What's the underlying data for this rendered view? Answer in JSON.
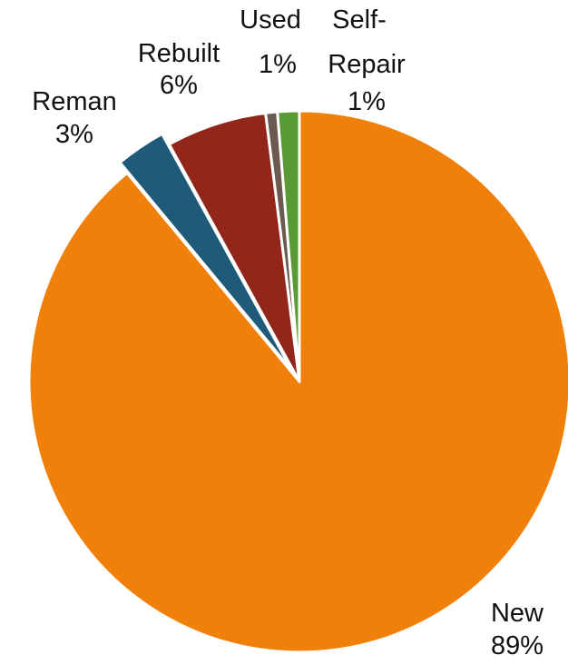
{
  "chart_data": {
    "type": "pie",
    "title": "",
    "legend": "none",
    "slices": [
      {
        "name": "New",
        "value": 89,
        "label_line1": "New",
        "label_line2": "89%",
        "color": "#F0800A",
        "exploded": false
      },
      {
        "name": "Reman",
        "value": 3,
        "label_line1": "Reman",
        "label_line2": "3%",
        "color": "#1F5A7A",
        "exploded": true
      },
      {
        "name": "Rebuilt",
        "value": 6,
        "label_line1": "Rebuilt",
        "label_line2": "6%",
        "color": "#92261B",
        "exploded": false
      },
      {
        "name": "Used",
        "value": 0.7,
        "label_line1": "Used",
        "label_line2": "1%",
        "color": "#6B5A50",
        "exploded": false
      },
      {
        "name": "Self-Repair",
        "value": 1.3,
        "label_line1": "Self-",
        "label_line2": "Repair",
        "label_line3": "1%",
        "color": "#5A9A34",
        "exploded": false
      }
    ]
  }
}
